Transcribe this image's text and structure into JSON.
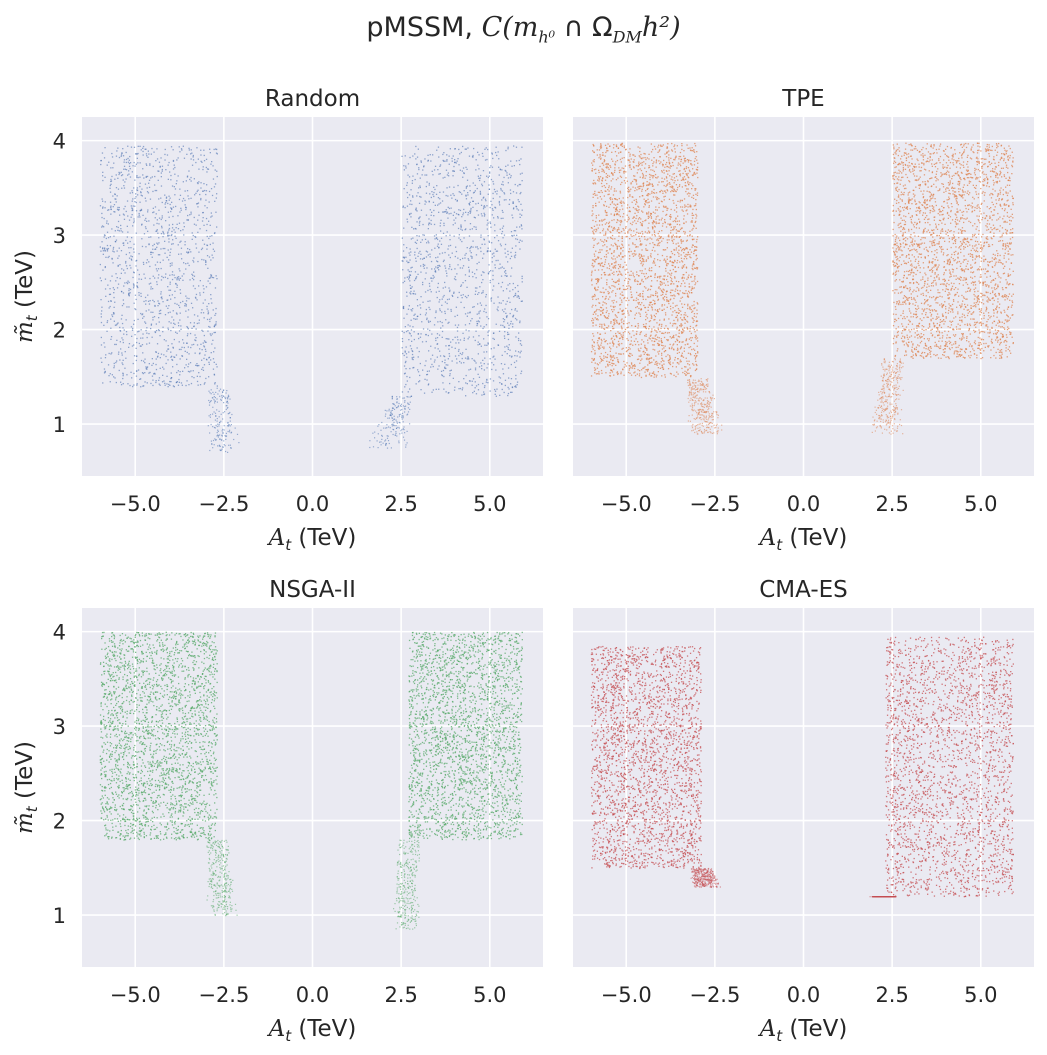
{
  "figure": {
    "title": "pMSSM, C(m_h⁰ ∩ Ω_DM h²)",
    "title_prefix": "pMSSM, ",
    "title_math": "C(m",
    "title_sub_h": "h⁰",
    "title_cap": " ∩ Ω",
    "title_sub_dm": "DM",
    "title_rest": "h²)"
  },
  "chart_data": [
    {
      "type": "scatter",
      "title": "Random",
      "color": "#4c72b0",
      "density": "low",
      "xlabel": "A_t (TeV)",
      "ylabel": "m̃_t (TeV)",
      "xlim": [
        -6.5,
        6.5
      ],
      "ylim": [
        0.45,
        4.25
      ],
      "xticks": [
        -5.0,
        -2.5,
        0.0,
        2.5,
        5.0
      ],
      "xtick_labels": [
        "−5.0",
        "−2.5",
        "0.0",
        "2.5",
        "5.0"
      ],
      "yticks": [
        1,
        2,
        3,
        4
      ],
      "ytick_labels": [
        "1",
        "2",
        "3",
        "4"
      ],
      "regions": [
        {
          "x_min": -6.0,
          "x_max": -2.7,
          "y_min": 1.4,
          "y_max": 3.95,
          "tail_to_x": -2.2,
          "tail_to_y": 0.7
        },
        {
          "x_min": 2.5,
          "x_max": 5.9,
          "y_min": 1.3,
          "y_max": 3.95,
          "tail_to_x": 1.7,
          "tail_to_y": 0.75
        }
      ]
    },
    {
      "type": "scatter",
      "title": "TPE",
      "color": "#dd8452",
      "density": "high",
      "xlabel": "A_t (TeV)",
      "ylabel": "m̃_t (TeV)",
      "xlim": [
        -6.5,
        6.5
      ],
      "ylim": [
        0.45,
        4.25
      ],
      "xticks": [
        -5.0,
        -2.5,
        0.0,
        2.5,
        5.0
      ],
      "xtick_labels": [
        "−5.0",
        "−2.5",
        "0.0",
        "2.5",
        "5.0"
      ],
      "yticks": [
        1,
        2,
        3,
        4
      ],
      "ytick_labels": [
        "1",
        "2",
        "3",
        "4"
      ],
      "regions": [
        {
          "x_min": -6.0,
          "x_max": -3.0,
          "y_min": 1.5,
          "y_max": 3.98,
          "tail_to_x": -2.5,
          "tail_to_y": 0.9
        },
        {
          "x_min": 2.5,
          "x_max": 5.9,
          "y_min": 1.7,
          "y_max": 3.98,
          "tail_to_x": 2.1,
          "tail_to_y": 0.9
        }
      ]
    },
    {
      "type": "scatter",
      "title": "NSGA-II",
      "color": "#55a868",
      "density": "high",
      "xlabel": "A_t (TeV)",
      "ylabel": "m̃_t (TeV)",
      "xlim": [
        -6.5,
        6.5
      ],
      "ylim": [
        0.45,
        4.25
      ],
      "xticks": [
        -5.0,
        -2.5,
        0.0,
        2.5,
        5.0
      ],
      "xtick_labels": [
        "−5.0",
        "−2.5",
        "0.0",
        "2.5",
        "5.0"
      ],
      "yticks": [
        1,
        2,
        3,
        4
      ],
      "ytick_labels": [
        "1",
        "2",
        "3",
        "4"
      ],
      "regions": [
        {
          "x_min": -6.0,
          "x_max": -2.7,
          "y_min": 1.8,
          "y_max": 4.0,
          "tail_to_x": -2.4,
          "tail_to_y": 1.0
        },
        {
          "x_min": 2.7,
          "x_max": 5.9,
          "y_min": 1.8,
          "y_max": 4.0,
          "tail_to_x": 2.5,
          "tail_to_y": 0.85
        }
      ]
    },
    {
      "type": "scatter",
      "title": "CMA-ES",
      "color": "#c44e52",
      "density": "high",
      "xlabel": "A_t (TeV)",
      "ylabel": "m̃_t (TeV)",
      "xlim": [
        -6.5,
        6.5
      ],
      "ylim": [
        0.45,
        4.25
      ],
      "xticks": [
        -5.0,
        -2.5,
        0.0,
        2.5,
        5.0
      ],
      "xtick_labels": [
        "−5.0",
        "−2.5",
        "0.0",
        "2.5",
        "5.0"
      ],
      "yticks": [
        1,
        2,
        3,
        4
      ],
      "ytick_labels": [
        "1",
        "2",
        "3",
        "4"
      ],
      "regions": [
        {
          "x_min": -6.0,
          "x_max": -2.9,
          "y_min": 1.5,
          "y_max": 3.85,
          "tail_to_x": -2.6,
          "tail_to_y": 1.3
        },
        {
          "x_min": 2.3,
          "x_max": 5.9,
          "y_min": 1.2,
          "y_max": 3.95,
          "tail_to_x": 2.1,
          "tail_to_y": 1.2
        }
      ]
    }
  ]
}
